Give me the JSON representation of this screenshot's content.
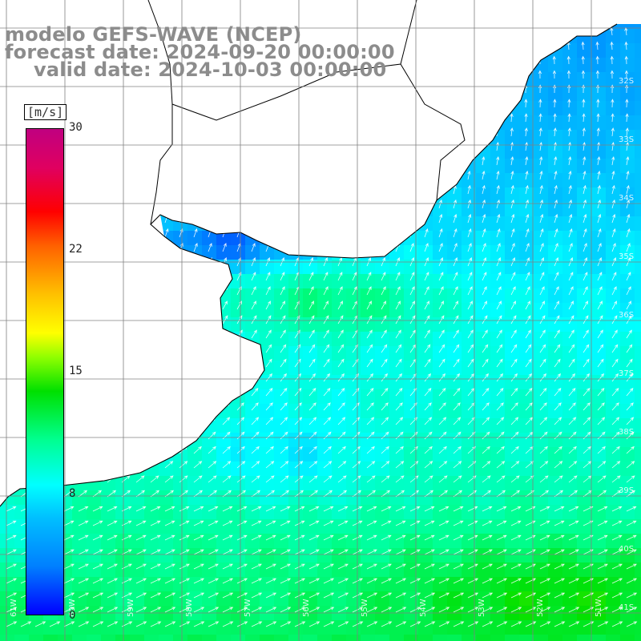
{
  "header": {
    "line1": "modelo GEFS-WAVE (NCEP)",
    "line2": "forecast date: 2024-09-20 00:00:00",
    "line3": "valid date: 2024-10-03 00:00:00"
  },
  "colorbar": {
    "unit": "[m/s]",
    "labels": [
      "30",
      "22",
      "15",
      "8",
      "0"
    ],
    "range": [
      0,
      30
    ],
    "colors": [
      "#0000ff",
      "#00ffff",
      "#00e000",
      "#ffff00",
      "#ff0000",
      "#c00080"
    ]
  },
  "axes": {
    "lat_labels": [
      "32S",
      "33S",
      "34S",
      "35S",
      "36S",
      "37S",
      "38S",
      "39S",
      "40S",
      "41S"
    ],
    "lon_labels": [
      "61W",
      "60W",
      "59W",
      "58W",
      "57W",
      "56W",
      "55W",
      "54W",
      "53W",
      "52W",
      "51W"
    ]
  },
  "field": {
    "variable": "wind speed",
    "arrow_direction": "northeast",
    "colors": {
      "land": "#ffffff",
      "coast": "#000000",
      "grid": "#808080",
      "arrows": "#ffffff"
    }
  }
}
